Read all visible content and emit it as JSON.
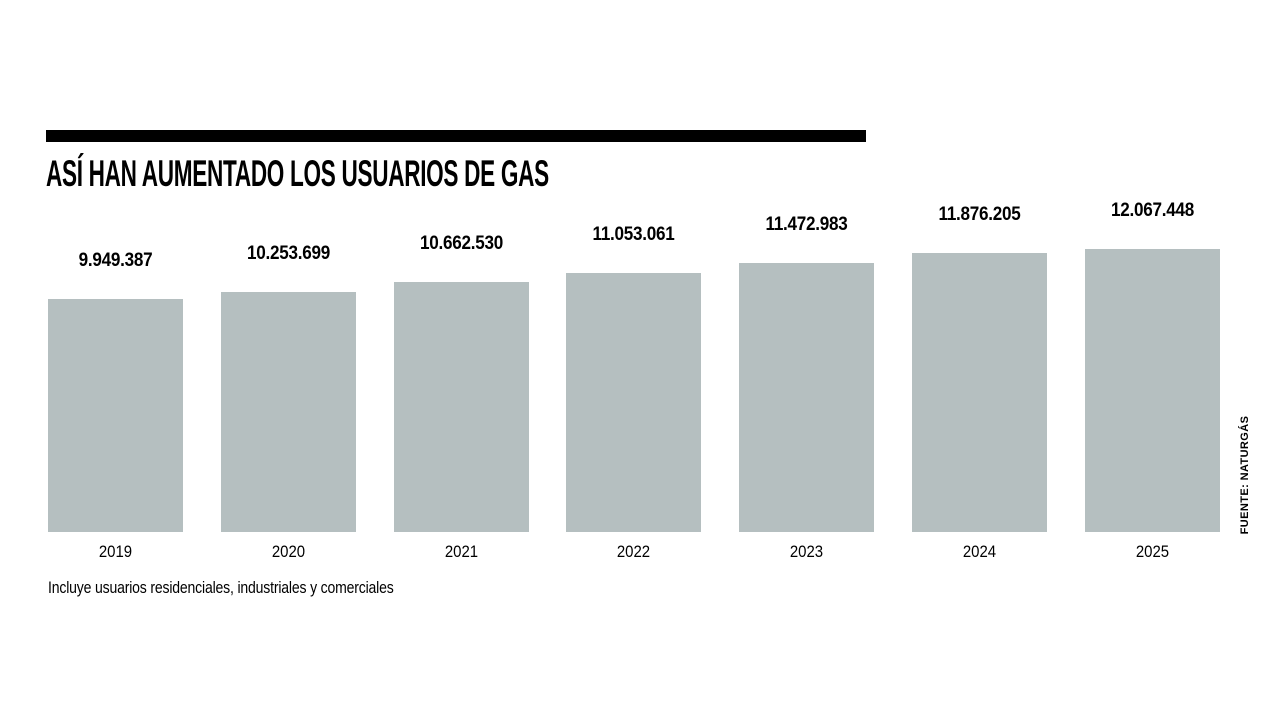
{
  "chart": {
    "title": "ASÍ HAN AUMENTADO LOS USUARIOS DE GAS",
    "footnote": "Incluye usuarios residenciales, industriales y comerciales",
    "source": "FUENTE: NATURGÁS",
    "bar_color": "#b5bfc0",
    "rule_color": "#000000",
    "text_color": "#000000",
    "background_color": "#ffffff"
  },
  "chart_data": {
    "type": "bar",
    "title": "ASÍ HAN AUMENTADO LOS USUARIOS DE GAS",
    "categories": [
      "2019",
      "2020",
      "2021",
      "2022",
      "2023",
      "2024",
      "2025"
    ],
    "values": [
      9949387,
      10253699,
      10662530,
      11053061,
      11472983,
      11876205,
      12067448
    ],
    "value_labels": [
      "9.949.387",
      "10.253.699",
      "10.662.530",
      "11.053.061",
      "11.472.983",
      "11.876.205",
      "12.067.448"
    ],
    "xlabel": "",
    "ylabel": "",
    "ylim": [
      0,
      12067448
    ],
    "grid": false,
    "legend": "none",
    "value_labels_position": "above-bars",
    "baseline": "zero"
  }
}
